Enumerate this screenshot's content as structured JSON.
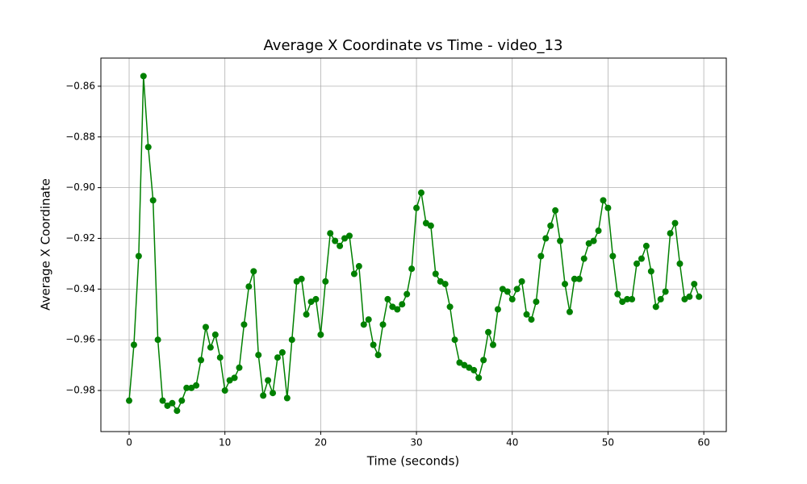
{
  "chart_data": {
    "type": "line",
    "title": "Average X Coordinate vs Time - video_13",
    "xlabel": "Time (seconds)",
    "ylabel": "Average X Coordinate",
    "color": "#008000",
    "grid": true,
    "x": [
      0,
      0.5,
      1,
      1.5,
      2,
      2.5,
      3,
      3.5,
      4,
      4.5,
      5,
      5.5,
      6,
      6.5,
      7,
      7.5,
      8,
      8.5,
      9,
      9.5,
      10,
      10.5,
      11,
      11.5,
      12,
      12.5,
      13,
      13.5,
      14,
      14.5,
      15,
      15.5,
      16,
      16.5,
      17,
      17.5,
      18,
      18.5,
      19,
      19.5,
      20,
      20.5,
      21,
      21.5,
      22,
      22.5,
      23,
      23.5,
      24,
      24.5,
      25,
      25.5,
      26,
      26.5,
      27,
      27.5,
      28,
      28.5,
      29,
      29.5,
      30,
      30.5,
      31,
      31.5,
      32,
      32.5,
      33,
      33.5,
      34,
      34.5,
      35,
      35.5,
      36,
      36.5,
      37,
      37.5,
      38,
      38.5,
      39,
      39.5,
      40,
      40.5,
      41,
      41.5,
      42,
      42.5,
      43,
      43.5,
      44,
      44.5,
      45,
      45.5,
      46,
      46.5,
      47,
      47.5,
      48,
      48.5,
      49,
      49.5,
      50,
      50.5,
      51,
      51.5,
      52,
      52.5,
      53,
      53.5,
      54,
      54.5,
      55,
      55.5,
      56,
      56.5,
      57,
      57.5,
      58,
      58.5,
      59,
      59.5
    ],
    "values": [
      -0.984,
      -0.962,
      -0.927,
      -0.856,
      -0.884,
      -0.905,
      -0.96,
      -0.984,
      -0.986,
      -0.985,
      -0.988,
      -0.984,
      -0.979,
      -0.979,
      -0.978,
      -0.968,
      -0.955,
      -0.963,
      -0.958,
      -0.967,
      -0.98,
      -0.976,
      -0.975,
      -0.971,
      -0.954,
      -0.939,
      -0.933,
      -0.966,
      -0.982,
      -0.976,
      -0.981,
      -0.967,
      -0.965,
      -0.983,
      -0.96,
      -0.937,
      -0.936,
      -0.95,
      -0.945,
      -0.944,
      -0.958,
      -0.937,
      -0.918,
      -0.921,
      -0.923,
      -0.92,
      -0.919,
      -0.934,
      -0.931,
      -0.954,
      -0.952,
      -0.962,
      -0.966,
      -0.954,
      -0.944,
      -0.947,
      -0.948,
      -0.946,
      -0.942,
      -0.932,
      -0.908,
      -0.902,
      -0.914,
      -0.915,
      -0.934,
      -0.937,
      -0.938,
      -0.947,
      -0.96,
      -0.969,
      -0.97,
      -0.971,
      -0.972,
      -0.975,
      -0.968,
      -0.957,
      -0.962,
      -0.948,
      -0.94,
      -0.941,
      -0.944,
      -0.94,
      -0.937,
      -0.95,
      -0.952,
      -0.945,
      -0.927,
      -0.92,
      -0.915,
      -0.909,
      -0.921,
      -0.938,
      -0.949,
      -0.936,
      -0.936,
      -0.928,
      -0.922,
      -0.921,
      -0.917,
      -0.905,
      -0.908,
      -0.927,
      -0.942,
      -0.945,
      -0.944,
      -0.944,
      -0.93,
      -0.928,
      -0.923,
      -0.933,
      -0.947,
      -0.944,
      -0.941,
      -0.918,
      -0.914,
      -0.93,
      -0.944,
      -0.943,
      -0.938,
      -0.943
    ],
    "xlim": [
      -2.95,
      62.35
    ],
    "ylim": [
      -0.9962,
      -0.8489
    ],
    "xticks": [
      0,
      10,
      20,
      30,
      40,
      50,
      60
    ],
    "yticks": [
      {
        "value": -0.98,
        "label": "−0.98"
      },
      {
        "value": -0.96,
        "label": "−0.96"
      },
      {
        "value": -0.94,
        "label": "−0.94"
      },
      {
        "value": -0.92,
        "label": "−0.92"
      },
      {
        "value": -0.9,
        "label": "−0.90"
      },
      {
        "value": -0.88,
        "label": "−0.88"
      },
      {
        "value": -0.86,
        "label": "−0.86"
      }
    ]
  }
}
